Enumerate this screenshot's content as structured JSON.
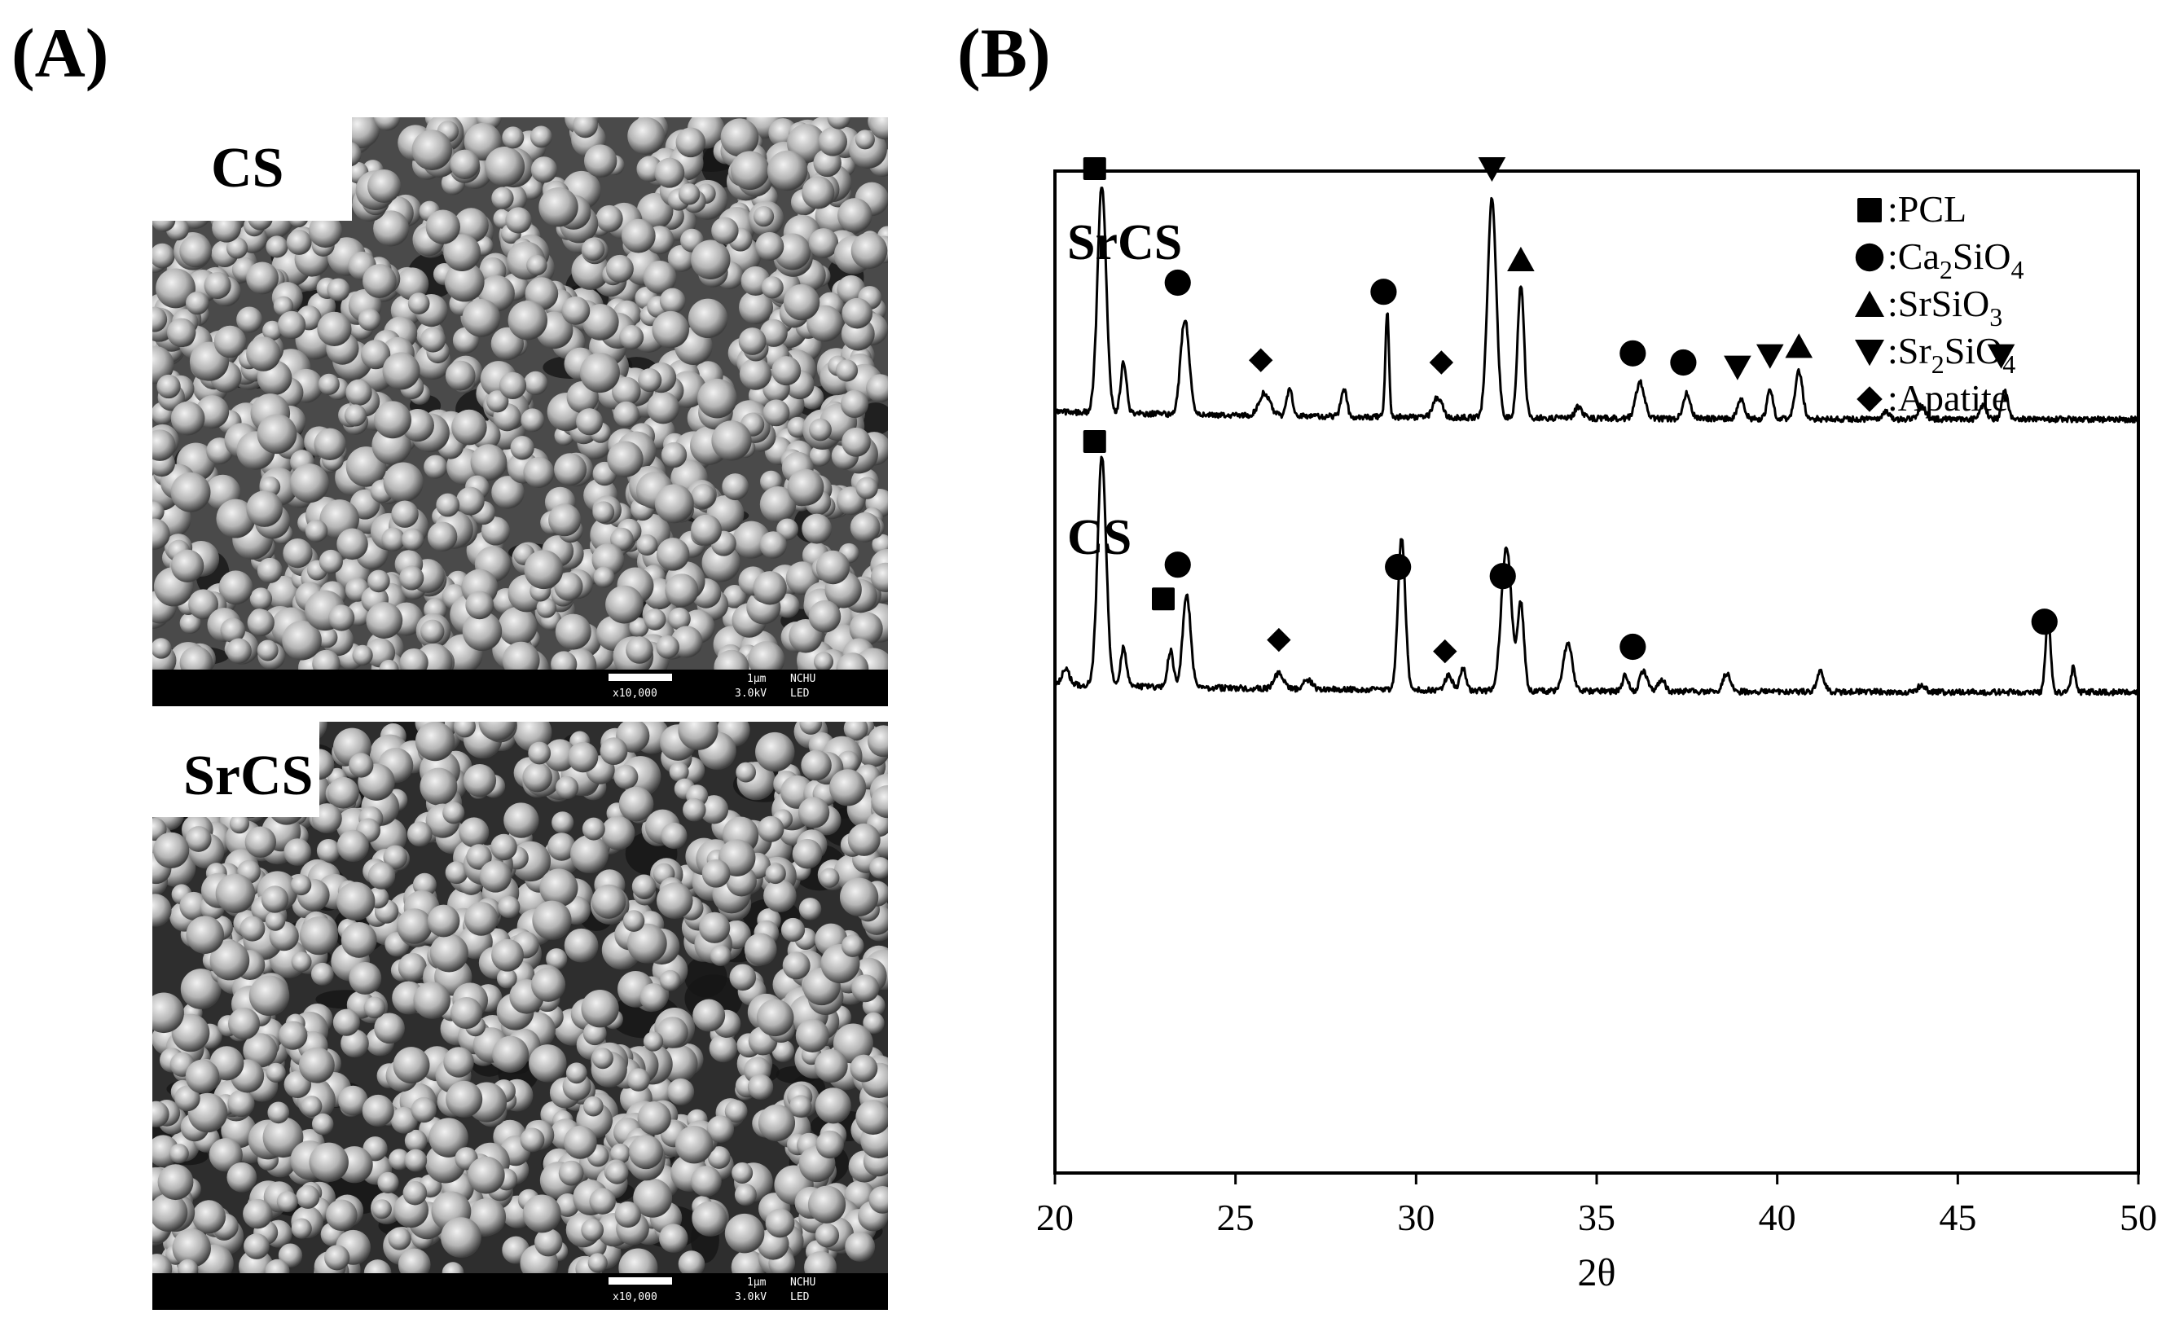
{
  "panels": {
    "a_label": "(A)",
    "b_label": "(B)"
  },
  "sem": [
    {
      "tag": "CS",
      "scale": "1μm",
      "magnification": "x10,000",
      "voltage": "3.0kV",
      "institution": "NCHU",
      "detector": "LED"
    },
    {
      "tag": "SrCS",
      "scale": "1μm",
      "magnification": "x10,000",
      "voltage": "3.0kV",
      "institution": "NCHU",
      "detector": "LED"
    }
  ],
  "chart_data": {
    "type": "line",
    "title": "",
    "xlabel": "2θ",
    "ylabel": "",
    "xlim": [
      20,
      50
    ],
    "xticks": [
      20,
      25,
      30,
      35,
      40,
      45,
      50
    ],
    "legend": {
      "placement": "top-right",
      "entries": [
        {
          "marker": "square",
          "label_main": ":PCL",
          "formula": ""
        },
        {
          "marker": "circle",
          "label_main": ":Ca",
          "sub1": "2",
          "mid": "SiO",
          "sub2": "4"
        },
        {
          "marker": "triangle-up",
          "label_main": ":SrSiO",
          "sub1": "",
          "mid": "",
          "sub2": "3"
        },
        {
          "marker": "triangle-down",
          "label_main": ":Sr",
          "sub1": "2",
          "mid": "SiO",
          "sub2": "4"
        },
        {
          "marker": "diamond",
          "label_main": ":Apatite"
        }
      ]
    },
    "series": [
      {
        "name": "SrCS",
        "baseline": 0.0,
        "peaks": [
          {
            "x": 21.3,
            "h": 1.0,
            "w": 0.12
          },
          {
            "x": 21.9,
            "h": 0.22,
            "w": 0.08
          },
          {
            "x": 23.6,
            "h": 0.42,
            "w": 0.12
          },
          {
            "x": 25.8,
            "h": 0.1,
            "w": 0.15
          },
          {
            "x": 26.5,
            "h": 0.12,
            "w": 0.08
          },
          {
            "x": 28.0,
            "h": 0.12,
            "w": 0.08
          },
          {
            "x": 29.2,
            "h": 0.46,
            "w": 0.05
          },
          {
            "x": 30.6,
            "h": 0.09,
            "w": 0.12
          },
          {
            "x": 32.1,
            "h": 0.96,
            "w": 0.12
          },
          {
            "x": 32.9,
            "h": 0.58,
            "w": 0.09
          },
          {
            "x": 34.5,
            "h": 0.05,
            "w": 0.1
          },
          {
            "x": 36.2,
            "h": 0.16,
            "w": 0.12
          },
          {
            "x": 37.5,
            "h": 0.11,
            "w": 0.1
          },
          {
            "x": 39.0,
            "h": 0.08,
            "w": 0.1
          },
          {
            "x": 39.8,
            "h": 0.13,
            "w": 0.08
          },
          {
            "x": 40.6,
            "h": 0.21,
            "w": 0.1
          },
          {
            "x": 43.0,
            "h": 0.03,
            "w": 0.1
          },
          {
            "x": 44.0,
            "h": 0.06,
            "w": 0.1
          },
          {
            "x": 45.7,
            "h": 0.06,
            "w": 0.1
          },
          {
            "x": 46.3,
            "h": 0.13,
            "w": 0.08
          }
        ],
        "markers": [
          {
            "x": 21.1,
            "y": 1.1,
            "marker": "square"
          },
          {
            "x": 23.4,
            "y": 0.6,
            "marker": "circle"
          },
          {
            "x": 25.7,
            "y": 0.26,
            "marker": "diamond"
          },
          {
            "x": 29.1,
            "y": 0.56,
            "marker": "circle"
          },
          {
            "x": 30.7,
            "y": 0.25,
            "marker": "diamond"
          },
          {
            "x": 32.1,
            "y": 1.1,
            "marker": "triangle-down"
          },
          {
            "x": 32.9,
            "y": 0.7,
            "marker": "triangle-up"
          },
          {
            "x": 36.0,
            "y": 0.29,
            "marker": "circle"
          },
          {
            "x": 37.4,
            "y": 0.25,
            "marker": "circle"
          },
          {
            "x": 38.9,
            "y": 0.23,
            "marker": "triangle-down"
          },
          {
            "x": 39.8,
            "y": 0.28,
            "marker": "triangle-down"
          },
          {
            "x": 40.6,
            "y": 0.32,
            "marker": "triangle-up"
          },
          {
            "x": 46.2,
            "y": 0.28,
            "marker": "triangle-down"
          }
        ]
      },
      {
        "name": "CS",
        "baseline": 0.0,
        "peaks": [
          {
            "x": 20.3,
            "h": 0.07,
            "w": 0.1
          },
          {
            "x": 21.3,
            "h": 1.0,
            "w": 0.12
          },
          {
            "x": 21.9,
            "h": 0.17,
            "w": 0.08
          },
          {
            "x": 23.2,
            "h": 0.16,
            "w": 0.08
          },
          {
            "x": 23.65,
            "h": 0.4,
            "w": 0.11
          },
          {
            "x": 26.2,
            "h": 0.07,
            "w": 0.12
          },
          {
            "x": 27.0,
            "h": 0.04,
            "w": 0.12
          },
          {
            "x": 29.6,
            "h": 0.67,
            "w": 0.1
          },
          {
            "x": 30.9,
            "h": 0.07,
            "w": 0.1
          },
          {
            "x": 31.3,
            "h": 0.1,
            "w": 0.08
          },
          {
            "x": 32.5,
            "h": 0.63,
            "w": 0.14
          },
          {
            "x": 32.9,
            "h": 0.38,
            "w": 0.09
          },
          {
            "x": 34.2,
            "h": 0.21,
            "w": 0.12
          },
          {
            "x": 35.8,
            "h": 0.07,
            "w": 0.08
          },
          {
            "x": 36.3,
            "h": 0.09,
            "w": 0.1
          },
          {
            "x": 36.8,
            "h": 0.05,
            "w": 0.1
          },
          {
            "x": 38.6,
            "h": 0.08,
            "w": 0.1
          },
          {
            "x": 41.2,
            "h": 0.09,
            "w": 0.1
          },
          {
            "x": 44.0,
            "h": 0.03,
            "w": 0.1
          },
          {
            "x": 47.5,
            "h": 0.33,
            "w": 0.07
          },
          {
            "x": 48.2,
            "h": 0.11,
            "w": 0.06
          }
        ],
        "markers": [
          {
            "x": 21.1,
            "y": 1.1,
            "marker": "square"
          },
          {
            "x": 23.0,
            "y": 0.41,
            "marker": "square"
          },
          {
            "x": 23.4,
            "y": 0.56,
            "marker": "circle"
          },
          {
            "x": 26.2,
            "y": 0.23,
            "marker": "diamond"
          },
          {
            "x": 29.5,
            "y": 0.55,
            "marker": "circle"
          },
          {
            "x": 30.8,
            "y": 0.18,
            "marker": "diamond"
          },
          {
            "x": 32.4,
            "y": 0.51,
            "marker": "circle"
          },
          {
            "x": 36.0,
            "y": 0.2,
            "marker": "circle"
          },
          {
            "x": 47.4,
            "y": 0.31,
            "marker": "circle"
          }
        ]
      }
    ]
  }
}
